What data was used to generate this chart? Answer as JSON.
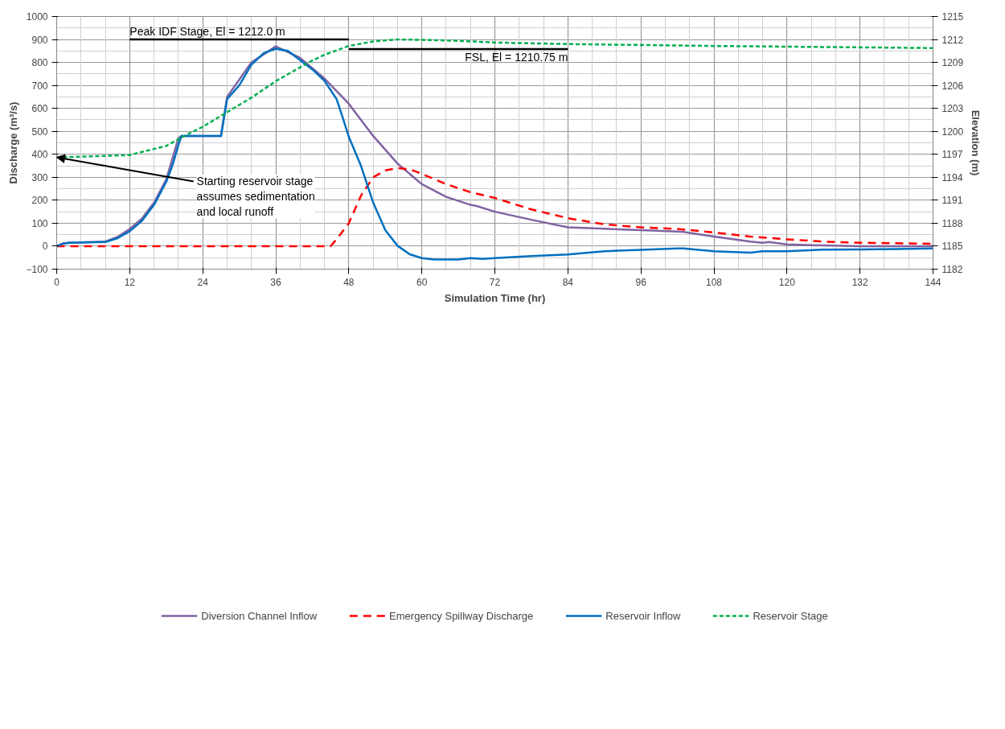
{
  "chart_data": {
    "type": "line",
    "xlabel": "Simulation Time (hr)",
    "ylabel": "Discharge (m³/s)",
    "y2label": "Elevation (m)",
    "xlim": [
      0,
      144
    ],
    "xticks": [
      0,
      12,
      24,
      36,
      48,
      60,
      72,
      84,
      96,
      108,
      120,
      132,
      144
    ],
    "ylim": [
      -100,
      1000
    ],
    "yticks": [
      -100,
      0,
      100,
      200,
      300,
      400,
      500,
      600,
      700,
      800,
      900,
      1000
    ],
    "y2lim": [
      1182,
      1215
    ],
    "y2ticks": [
      1182,
      1185,
      1188,
      1191,
      1194,
      1197,
      1200,
      1203,
      1206,
      1209,
      1212,
      1215
    ],
    "grid": true,
    "legend": "bottom",
    "marker": "none",
    "series": [
      {
        "name": "Diversion Channel Inflow",
        "color": "#8064a2",
        "line_style": "solid",
        "x": [
          0,
          1,
          2,
          8,
          10,
          12,
          14,
          16,
          18,
          20,
          20.5,
          27,
          28,
          32,
          36,
          40,
          44,
          48,
          52,
          56,
          60,
          64,
          68,
          69,
          72,
          78,
          84,
          90,
          96,
          102,
          103,
          108,
          114,
          116,
          117,
          120,
          126,
          132,
          144
        ],
        "values": [
          0,
          12,
          15,
          20,
          40,
          75,
          120,
          190,
          290,
          470,
          480,
          480,
          650,
          800,
          870,
          820,
          730,
          620,
          480,
          360,
          270,
          215,
          180,
          175,
          150,
          115,
          82,
          76,
          70,
          64,
          62,
          42,
          20,
          15,
          18,
          8,
          3,
          0,
          0
        ]
      },
      {
        "name": "Emergency Spillway Discharge",
        "color": "#ff0000",
        "line_style": "dashed",
        "x": [
          0,
          45,
          46,
          48,
          50,
          52,
          54,
          56,
          58,
          60,
          64,
          68,
          72,
          78,
          84,
          90,
          96,
          102,
          108,
          114,
          120,
          126,
          132,
          138,
          144
        ],
        "values": [
          0,
          0,
          30,
          100,
          220,
          300,
          330,
          340,
          335,
          315,
          270,
          235,
          210,
          160,
          122,
          95,
          82,
          75,
          60,
          42,
          30,
          20,
          15,
          13,
          10
        ]
      },
      {
        "name": "Reservoir Inflow",
        "color": "#0070c0",
        "line_style": "solid",
        "x": [
          0,
          1,
          2,
          8,
          10,
          12,
          14,
          16,
          18,
          19,
          20,
          20.5,
          27,
          28,
          30,
          32,
          34,
          36,
          38,
          40,
          42,
          44,
          46,
          47,
          48,
          50,
          52,
          54,
          56,
          58,
          60,
          62,
          66,
          68,
          70,
          72,
          78,
          84,
          90,
          96,
          102,
          103,
          108,
          114,
          116,
          120,
          126,
          132,
          138,
          144
        ],
        "values": [
          0,
          10,
          15,
          18,
          35,
          65,
          110,
          180,
          280,
          350,
          440,
          480,
          480,
          640,
          700,
          790,
          840,
          860,
          850,
          810,
          770,
          720,
          640,
          560,
          476,
          350,
          190,
          70,
          2,
          -35,
          -52,
          -58,
          -58,
          -52,
          -55,
          -52,
          -43,
          -36,
          -22,
          -16,
          -10,
          -10,
          -22,
          -28,
          -22,
          -22,
          -15,
          -14,
          -12,
          -10
        ]
      },
      {
        "name": "Reservoir Stage",
        "color": "#00b050",
        "line_style": "dotted",
        "axis": "y2",
        "x": [
          0,
          12,
          18,
          21,
          24,
          28,
          32,
          36,
          41.5,
          44,
          48,
          52,
          56,
          60,
          65,
          72,
          84,
          96,
          108,
          120,
          132,
          144
        ],
        "values": [
          1196.6,
          1196.9,
          1198.1,
          1199.4,
          1200.6,
          1202.5,
          1204.4,
          1206.55,
          1209.05,
          1210.0,
          1211.15,
          1211.75,
          1212.0,
          1211.95,
          1211.85,
          1211.6,
          1211.4,
          1211.28,
          1211.15,
          1211.06,
          1210.97,
          1210.88
        ]
      },
      {
        "color": "#000000",
        "line_style": "solid",
        "axis": "y2",
        "x": [
          12,
          48
        ],
        "values": [
          1212.0,
          1212.0
        ]
      },
      {
        "color": "#000000",
        "line_style": "solid",
        "axis": "y2",
        "x": [
          48,
          84
        ],
        "values": [
          1210.75,
          1210.75
        ]
      }
    ],
    "annotations": [
      {
        "text": "Peak IDF Stage, El = 1212.0 m",
        "x": 12,
        "y": 900
      },
      {
        "text": "FSL, El = 1210.75 m",
        "x": 84,
        "y": 860
      },
      {
        "text": "Starting reservoir stage\nassumes sedimentation\nand local runoff",
        "x": 0,
        "y": 387
      }
    ]
  }
}
